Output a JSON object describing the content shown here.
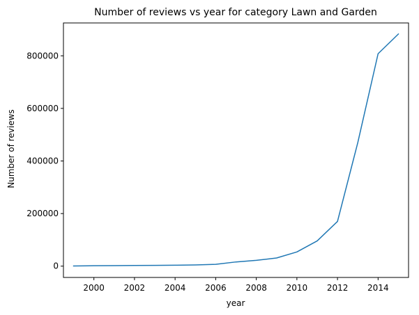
{
  "chart_data": {
    "type": "line",
    "title": "Number of reviews vs year for category Lawn and Garden",
    "xlabel": "year",
    "ylabel": "Number of reviews",
    "xlim": [
      1998.5,
      2015.5
    ],
    "ylim": [
      -43000,
      925000
    ],
    "x_ticks": [
      2000,
      2002,
      2004,
      2006,
      2008,
      2010,
      2012,
      2014
    ],
    "x_tick_labels": [
      "2000",
      "2002",
      "2004",
      "2006",
      "2008",
      "2010",
      "2012",
      "2014"
    ],
    "y_ticks": [
      0,
      200000,
      400000,
      600000,
      800000
    ],
    "y_tick_labels": [
      "0",
      "200000",
      "400000",
      "600000",
      "800000"
    ],
    "grid": false,
    "legend": "none",
    "series": [
      {
        "color": "#1f77b4",
        "x": [
          1999,
          2000,
          2001,
          2002,
          2003,
          2004,
          2005,
          2006,
          2007,
          2008,
          2009,
          2010,
          2011,
          2012,
          2013,
          2014,
          2015
        ],
        "values": [
          500,
          1500,
          2000,
          2500,
          3000,
          3500,
          4500,
          7000,
          16000,
          22000,
          31000,
          54000,
          96000,
          170000,
          470000,
          808000,
          883000
        ]
      }
    ]
  }
}
